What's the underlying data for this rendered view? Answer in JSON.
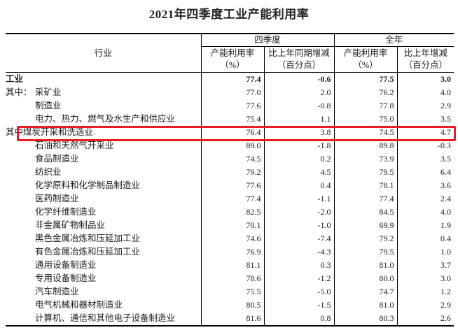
{
  "title": "2021年四季度工业产能利用率",
  "highlight_color": "#ed1c24",
  "table": {
    "industry_header": "行业",
    "groups": [
      {
        "label": "四季度"
      },
      {
        "label": "全年"
      }
    ],
    "sub_headers": [
      {
        "line1": "产能利用率",
        "line2": "（%）"
      },
      {
        "line1": "比上年同期增减",
        "line2": "（百分点）"
      },
      {
        "line1": "产能利用率",
        "line2": "（%）"
      },
      {
        "line1": "比上年增减",
        "line2": "（百分点）"
      }
    ],
    "rows": [
      {
        "prefix": "",
        "name": "工业",
        "style": "bold",
        "q4_rate": "77.4",
        "q4_change": "-0.6",
        "fy_rate": "77.5",
        "fy_change": "3.0"
      },
      {
        "prefix": "其中：",
        "name": "采矿业",
        "style": "prefix",
        "q4_rate": "77.0",
        "q4_change": "2.0",
        "fy_rate": "76.2",
        "fy_change": "4.0"
      },
      {
        "prefix": "",
        "name": "制造业",
        "style": "indent",
        "q4_rate": "77.6",
        "q4_change": "-0.8",
        "fy_rate": "77.8",
        "fy_change": "2.9"
      },
      {
        "prefix": "",
        "name": "电力、热力、燃气及水生产和供应业",
        "style": "indent",
        "q4_rate": "75.4",
        "q4_change": "1.1",
        "fy_rate": "75.0",
        "fy_change": "3.5"
      },
      {
        "prefix": "其中",
        "name": "煤炭开采和洗选业",
        "style": "highlight",
        "q4_rate": "76.4",
        "q4_change": "3.8",
        "fy_rate": "74.5",
        "fy_change": "4.7"
      },
      {
        "prefix": "",
        "name": "石油和天然气开采业",
        "style": "indent",
        "q4_rate": "89.0",
        "q4_change": "-1.8",
        "fy_rate": "89.8",
        "fy_change": "-0.3"
      },
      {
        "prefix": "",
        "name": "食品制造业",
        "style": "indent",
        "q4_rate": "74.5",
        "q4_change": "0.2",
        "fy_rate": "73.9",
        "fy_change": "3.5"
      },
      {
        "prefix": "",
        "name": "纺织业",
        "style": "indent",
        "q4_rate": "79.2",
        "q4_change": "4.5",
        "fy_rate": "79.5",
        "fy_change": "6.4"
      },
      {
        "prefix": "",
        "name": "化学原料和化学制品制造业",
        "style": "indent",
        "q4_rate": "77.6",
        "q4_change": "0.4",
        "fy_rate": "78.1",
        "fy_change": "3.6"
      },
      {
        "prefix": "",
        "name": "医药制造业",
        "style": "indent",
        "q4_rate": "77.4",
        "q4_change": "-1.1",
        "fy_rate": "77.4",
        "fy_change": "2.4"
      },
      {
        "prefix": "",
        "name": "化学纤维制造业",
        "style": "indent",
        "q4_rate": "82.5",
        "q4_change": "-2.0",
        "fy_rate": "84.5",
        "fy_change": "4.0"
      },
      {
        "prefix": "",
        "name": "非金属矿物制品业",
        "style": "indent",
        "q4_rate": "70.1",
        "q4_change": "-1.0",
        "fy_rate": "69.9",
        "fy_change": "1.9"
      },
      {
        "prefix": "",
        "name": "黑色金属冶炼和压延加工业",
        "style": "indent",
        "q4_rate": "74.6",
        "q4_change": "-7.4",
        "fy_rate": "79.2",
        "fy_change": "0.4"
      },
      {
        "prefix": "",
        "name": "有色金属冶炼和压延加工业",
        "style": "indent",
        "q4_rate": "76.9",
        "q4_change": "-4.3",
        "fy_rate": "79.5",
        "fy_change": "1.0"
      },
      {
        "prefix": "",
        "name": "通用设备制造业",
        "style": "indent",
        "q4_rate": "81.1",
        "q4_change": "0.3",
        "fy_rate": "81.0",
        "fy_change": "3.7"
      },
      {
        "prefix": "",
        "name": "专用设备制造业",
        "style": "indent",
        "q4_rate": "78.6",
        "q4_change": "-1.2",
        "fy_rate": "80.0",
        "fy_change": "3.0"
      },
      {
        "prefix": "",
        "name": "汽车制造业",
        "style": "indent",
        "q4_rate": "75.5",
        "q4_change": "-5.0",
        "fy_rate": "74.7",
        "fy_change": "1.2"
      },
      {
        "prefix": "",
        "name": "电气机械和器材制造业",
        "style": "indent",
        "q4_rate": "80.5",
        "q4_change": "-1.5",
        "fy_rate": "81.0",
        "fy_change": "2.9"
      },
      {
        "prefix": "",
        "name": "计算机、通信和其他电子设备制造业",
        "style": "indent",
        "q4_rate": "81.6",
        "q4_change": "0.8",
        "fy_rate": "80.3",
        "fy_change": "2.6"
      }
    ]
  }
}
